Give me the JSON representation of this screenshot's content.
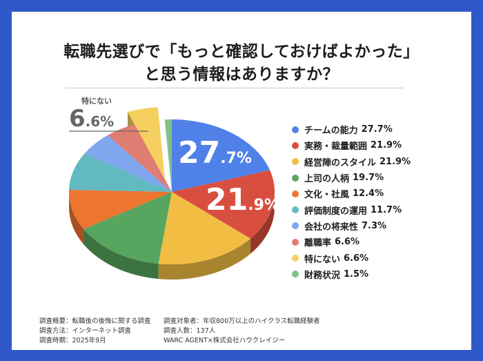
{
  "title_line1": "転職先選びで「もっと確認しておけばよかった」",
  "title_line2": "と思う情報はありますか？",
  "chart_data": {
    "type": "pie",
    "style": "3d-exploded",
    "categories": [
      "チームの能力",
      "実務・裁量範囲",
      "経営陣のスタイル",
      "上司の人柄",
      "文化・社風",
      "評価制度の運用",
      "会社の将来性",
      "離職率",
      "特にない",
      "財務状況"
    ],
    "values": [
      27.7,
      21.9,
      21.9,
      19.7,
      12.4,
      11.7,
      7.3,
      6.6,
      6.6,
      1.5
    ],
    "value_labels": [
      "27.7%",
      "21.9%",
      "21.9%",
      "19.7%",
      "12.4%",
      "11.7%",
      "7.3%",
      "6.6%",
      "6.6%",
      "1.5%"
    ],
    "colors": [
      "#4f81e8",
      "#d94f3f",
      "#f1bd42",
      "#57a55e",
      "#ec7530",
      "#63b9c0",
      "#7fa6ef",
      "#e07d72",
      "#f5d060",
      "#80c08a"
    ],
    "exploded": "特にない",
    "legend_position": "right",
    "annotations": {
      "blue": {
        "int": "27",
        "dec": ".7%"
      },
      "red": {
        "int": "21",
        "dec": ".9%"
      },
      "callout": {
        "label": "特にない",
        "int": "6",
        "dec": ".6%"
      }
    }
  },
  "footer": {
    "left": [
      "調査概要：転職後の後悔に関する調査",
      "調査方法：インターネット調査",
      "調査時期：2025年9月"
    ],
    "right": [
      "調査対象者：年収800万以上のハイクラス転職経験者",
      "調査人数：137人",
      "WARC AGENT×株式会社ハウクレイジー"
    ]
  }
}
